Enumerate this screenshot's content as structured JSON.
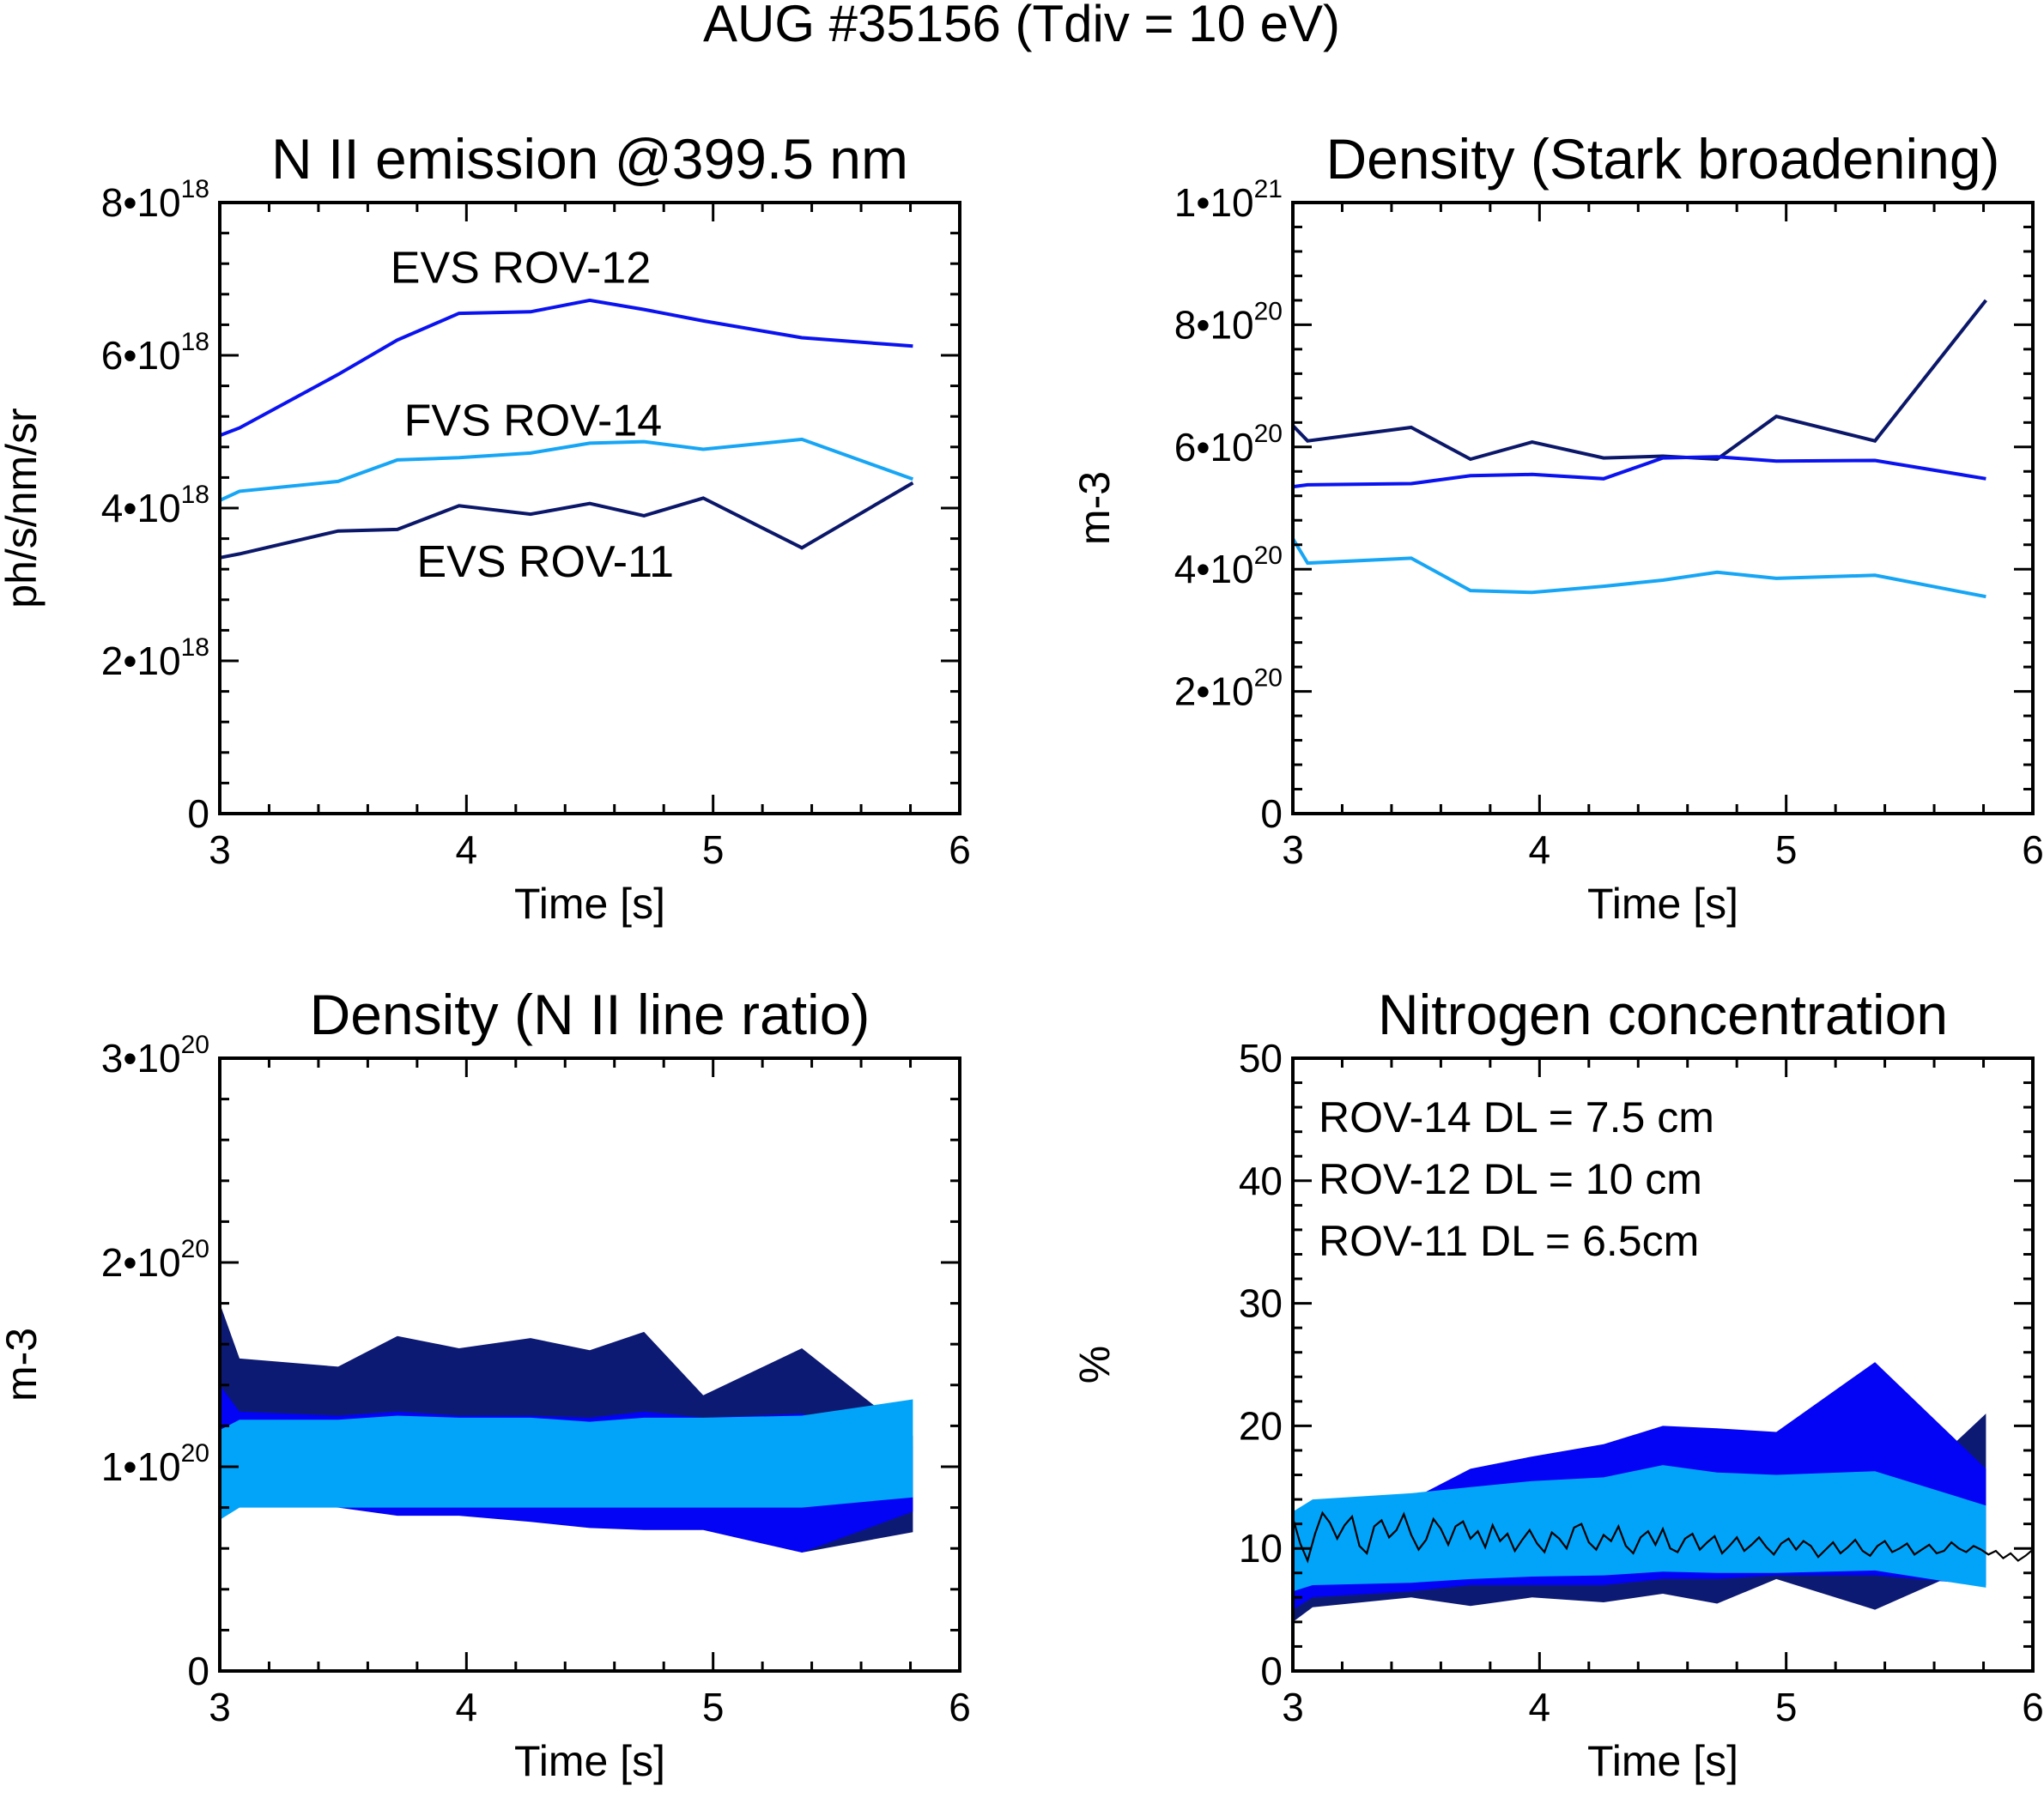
{
  "figure_title": "AUG #35156 (Tdiv = 10 eV)",
  "colors": {
    "dark_navy": "#0b1769",
    "blue": "#0a12f0",
    "light_blue": "#16a6f5",
    "fill_dark": "#0d1a73",
    "fill_blue": "#0303f5",
    "fill_light": "#02a4fa",
    "black": "#000000"
  },
  "chart_data": [
    {
      "id": "n2_emission",
      "type": "line",
      "title": "N II emission @399.5 nm",
      "xlabel": "Time [s]",
      "ylabel": "ph/s/nm/sr",
      "xlim": [
        3,
        6
      ],
      "ylim": [
        0,
        8e+18
      ],
      "xticks": [
        {
          "v": 3,
          "label": "3"
        },
        {
          "v": 4,
          "label": "4"
        },
        {
          "v": 5,
          "label": "5"
        },
        {
          "v": 6,
          "label": "6"
        }
      ],
      "yticks": [
        {
          "v": 0,
          "label": "0",
          "sup": ""
        },
        {
          "v": 2e+18,
          "label": "2•10",
          "sup": "18"
        },
        {
          "v": 4e+18,
          "label": "4•10",
          "sup": "18"
        },
        {
          "v": 6e+18,
          "label": "6•10",
          "sup": "18"
        },
        {
          "v": 8e+18,
          "label": "8•10",
          "sup": "18"
        }
      ],
      "series": [
        {
          "name": "EVS ROV-12",
          "color": "#0a12f0",
          "x": [
            3.0,
            3.08,
            3.48,
            3.72,
            3.97,
            4.26,
            4.5,
            4.72,
            4.96,
            5.36,
            5.81
          ],
          "y": [
            4.95e+18,
            5.05e+18,
            5.75e+18,
            6.2e+18,
            6.55e+18,
            6.57e+18,
            6.72e+18,
            6.6e+18,
            6.45e+18,
            6.23e+18,
            6.12e+18
          ],
          "label_x": 4.22,
          "label_y": 6.95e+18
        },
        {
          "name": "FVS ROV-14",
          "color": "#16a6f5",
          "x": [
            3.0,
            3.08,
            3.48,
            3.72,
            3.97,
            4.26,
            4.5,
            4.72,
            4.96,
            5.36,
            5.81
          ],
          "y": [
            4.1e+18,
            4.22e+18,
            4.35e+18,
            4.63e+18,
            4.66e+18,
            4.72e+18,
            4.85e+18,
            4.87e+18,
            4.77e+18,
            4.9e+18,
            4.38e+18
          ],
          "label_x": 4.27,
          "label_y": 4.95e+18
        },
        {
          "name": "EVS ROV-11",
          "color": "#0b1769",
          "x": [
            3.0,
            3.08,
            3.48,
            3.72,
            3.97,
            4.26,
            4.5,
            4.72,
            4.96,
            5.36,
            5.81
          ],
          "y": [
            3.35e+18,
            3.4e+18,
            3.7e+18,
            3.72e+18,
            4.03e+18,
            3.92e+18,
            4.06e+18,
            3.9e+18,
            4.13e+18,
            3.48e+18,
            4.33e+18
          ],
          "label_x": 4.32,
          "label_y": 3.1e+18
        }
      ]
    },
    {
      "id": "density_stark",
      "type": "line",
      "title": "Density (Stark broadening)",
      "xlabel": "Time [s]",
      "ylabel": "m-3",
      "xlim": [
        3,
        6
      ],
      "ylim": [
        0,
        1e+21
      ],
      "xticks": [
        {
          "v": 3,
          "label": "3"
        },
        {
          "v": 4,
          "label": "4"
        },
        {
          "v": 5,
          "label": "5"
        },
        {
          "v": 6,
          "label": "6"
        }
      ],
      "yticks": [
        {
          "v": 0,
          "label": "0",
          "sup": ""
        },
        {
          "v": 2e+20,
          "label": "2•10",
          "sup": "20"
        },
        {
          "v": 4e+20,
          "label": "4•10",
          "sup": "20"
        },
        {
          "v": 6e+20,
          "label": "6•10",
          "sup": "20"
        },
        {
          "v": 8e+20,
          "label": "8•10",
          "sup": "20"
        },
        {
          "v": 1e+21,
          "label": "1•10",
          "sup": "21"
        }
      ],
      "series": [
        {
          "name": "",
          "color": "#0b1769",
          "x": [
            3.0,
            3.06,
            3.48,
            3.72,
            3.97,
            4.26,
            4.5,
            4.72,
            4.96,
            5.36,
            5.81
          ],
          "y": [
            6.35e+20,
            6.1e+20,
            6.32e+20,
            5.8e+20,
            6.08e+20,
            5.82e+20,
            5.85e+20,
            5.8e+20,
            6.5e+20,
            6.1e+20,
            8.4e+20
          ]
        },
        {
          "name": "",
          "color": "#0a12f0",
          "x": [
            3.0,
            3.06,
            3.48,
            3.72,
            3.97,
            4.26,
            4.5,
            4.72,
            4.96,
            5.36,
            5.81
          ],
          "y": [
            5.35e+20,
            5.38e+20,
            5.4e+20,
            5.53e+20,
            5.55e+20,
            5.48e+20,
            5.82e+20,
            5.84e+20,
            5.77e+20,
            5.78e+20,
            5.48e+20
          ]
        },
        {
          "name": "",
          "color": "#16a6f5",
          "x": [
            3.0,
            3.06,
            3.48,
            3.72,
            3.97,
            4.26,
            4.5,
            4.72,
            4.96,
            5.36,
            5.81
          ],
          "y": [
            4.5e+20,
            4.1e+20,
            4.18e+20,
            3.65e+20,
            3.62e+20,
            3.72e+20,
            3.82e+20,
            3.95e+20,
            3.85e+20,
            3.9e+20,
            3.55e+20
          ]
        }
      ]
    },
    {
      "id": "density_line_ratio",
      "type": "area",
      "title": "Density (N II line ratio)",
      "xlabel": "Time [s]",
      "ylabel": "m-3",
      "xlim": [
        3,
        6
      ],
      "ylim": [
        0,
        3e+20
      ],
      "xticks": [
        {
          "v": 3,
          "label": "3"
        },
        {
          "v": 4,
          "label": "4"
        },
        {
          "v": 5,
          "label": "5"
        },
        {
          "v": 6,
          "label": "6"
        }
      ],
      "yticks": [
        {
          "v": 0,
          "label": "0",
          "sup": ""
        },
        {
          "v": 1e+20,
          "label": "1•10",
          "sup": "20"
        },
        {
          "v": 2e+20,
          "label": "2•10",
          "sup": "20"
        },
        {
          "v": 3e+20,
          "label": "3•10",
          "sup": "20"
        }
      ],
      "series": [
        {
          "name": "",
          "color": "#0d1a73",
          "x": [
            3.0,
            3.08,
            3.48,
            3.72,
            3.97,
            4.26,
            4.5,
            4.72,
            4.96,
            5.36,
            5.81
          ],
          "upper": [
            1.8e+20,
            1.53e+20,
            1.49e+20,
            1.64e+20,
            1.58e+20,
            1.63e+20,
            1.57e+20,
            1.66e+20,
            1.35e+20,
            1.58e+20,
            1.15e+20
          ],
          "lower": [
            1.1e+20,
            9.5e+19,
            9.5e+19,
            9e+19,
            9.2e+19,
            9e+19,
            8.6e+19,
            8.5e+19,
            8.5e+19,
            5.8e+19,
            6.8e+19
          ]
        },
        {
          "name": "",
          "color": "#0303f5",
          "x": [
            3.0,
            3.08,
            3.48,
            3.72,
            3.97,
            4.26,
            4.5,
            4.72,
            4.96,
            5.36,
            5.81
          ],
          "upper": [
            1.4e+20,
            1.27e+20,
            1.25e+20,
            1.27e+20,
            1.25e+20,
            1.25e+20,
            1.24e+20,
            1.27e+20,
            1.24e+20,
            1.26e+20,
            1.1e+20
          ],
          "lower": [
            8.5e+19,
            8.2e+19,
            8e+19,
            7.6e+19,
            7.6e+19,
            7.3e+19,
            7e+19,
            6.9e+19,
            6.9e+19,
            5.8e+19,
            7.8e+19
          ]
        },
        {
          "name": "",
          "color": "#02a4fa",
          "x": [
            3.0,
            3.08,
            3.48,
            3.72,
            3.97,
            4.26,
            4.5,
            4.72,
            4.96,
            5.36,
            5.81
          ],
          "upper": [
            1.18e+20,
            1.23e+20,
            1.23e+20,
            1.25e+20,
            1.24e+20,
            1.24e+20,
            1.22e+20,
            1.24e+20,
            1.24e+20,
            1.25e+20,
            1.33e+20
          ],
          "lower": [
            7.4e+19,
            8e+19,
            8e+19,
            8e+19,
            8e+19,
            8e+19,
            8e+19,
            8e+19,
            8e+19,
            8e+19,
            8.5e+19
          ]
        }
      ]
    },
    {
      "id": "nitrogen_concentration",
      "type": "area",
      "title": "Nitrogen concentration",
      "xlabel": "Time [s]",
      "ylabel": "%",
      "xlim": [
        3,
        6
      ],
      "ylim": [
        0,
        50
      ],
      "xticks": [
        {
          "v": 3,
          "label": "3"
        },
        {
          "v": 4,
          "label": "4"
        },
        {
          "v": 5,
          "label": "5"
        },
        {
          "v": 6,
          "label": "6"
        }
      ],
      "yticks": [
        {
          "v": 0,
          "label": "0",
          "sup": ""
        },
        {
          "v": 10,
          "label": "10",
          "sup": ""
        },
        {
          "v": 20,
          "label": "20",
          "sup": ""
        },
        {
          "v": 30,
          "label": "30",
          "sup": ""
        },
        {
          "v": 40,
          "label": "40",
          "sup": ""
        },
        {
          "v": 50,
          "label": "50",
          "sup": ""
        }
      ],
      "annotations": [
        "ROV-14 DL = 7.5 cm",
        "ROV-12 DL = 10 cm",
        "ROV-11 DL = 6.5cm"
      ],
      "series": [
        {
          "name": "ROV-11",
          "color": "#0d1a73",
          "x": [
            3.0,
            3.08,
            3.48,
            3.72,
            3.97,
            4.26,
            4.5,
            4.72,
            4.96,
            5.36,
            5.81
          ],
          "upper": [
            10.0,
            10.5,
            11.0,
            11.0,
            11.5,
            11.5,
            12.0,
            12.0,
            12.0,
            12.5,
            21.0
          ],
          "lower": [
            4.0,
            5.2,
            6.0,
            5.3,
            6.0,
            5.6,
            6.3,
            5.5,
            7.5,
            5.0,
            9.0
          ]
        },
        {
          "name": "ROV-12",
          "color": "#0303f5",
          "x": [
            3.0,
            3.08,
            3.48,
            3.72,
            3.97,
            4.26,
            4.5,
            4.72,
            4.96,
            5.36,
            5.81
          ],
          "upper": [
            12.0,
            13.0,
            14.0,
            16.5,
            17.5,
            18.5,
            20.0,
            19.8,
            19.5,
            25.2,
            16.5
          ],
          "lower": [
            5.0,
            6.0,
            6.5,
            7.0,
            7.0,
            7.0,
            7.5,
            7.5,
            7.8,
            7.8,
            7.0
          ]
        },
        {
          "name": "ROV-14",
          "color": "#02a4fa",
          "x": [
            3.0,
            3.08,
            3.48,
            3.72,
            3.97,
            4.26,
            4.5,
            4.72,
            4.96,
            5.36,
            5.81
          ],
          "upper": [
            13.0,
            14.0,
            14.5,
            15.0,
            15.5,
            15.8,
            16.8,
            16.2,
            16.0,
            16.3,
            13.5
          ],
          "lower": [
            6.5,
            7.0,
            7.2,
            7.5,
            7.7,
            7.8,
            8.1,
            8.0,
            8.0,
            8.2,
            6.8
          ]
        }
      ],
      "trace": {
        "color": "#000000",
        "x": [
          3.0,
          3.03,
          3.06,
          3.09,
          3.12,
          3.15,
          3.18,
          3.21,
          3.24,
          3.27,
          3.3,
          3.33,
          3.36,
          3.39,
          3.42,
          3.45,
          3.48,
          3.51,
          3.54,
          3.57,
          3.6,
          3.63,
          3.66,
          3.69,
          3.72,
          3.75,
          3.78,
          3.81,
          3.84,
          3.87,
          3.9,
          3.93,
          3.96,
          3.99,
          4.02,
          4.05,
          4.08,
          4.11,
          4.14,
          4.17,
          4.2,
          4.23,
          4.26,
          4.29,
          4.32,
          4.35,
          4.38,
          4.41,
          4.44,
          4.47,
          4.5,
          4.53,
          4.56,
          4.59,
          4.62,
          4.65,
          4.68,
          4.71,
          4.74,
          4.77,
          4.8,
          4.83,
          4.86,
          4.89,
          4.92,
          4.95,
          4.98,
          5.01,
          5.04,
          5.07,
          5.1,
          5.13,
          5.16,
          5.19,
          5.22,
          5.25,
          5.28,
          5.31,
          5.34,
          5.37,
          5.4,
          5.43,
          5.46,
          5.49,
          5.52,
          5.55,
          5.58,
          5.61,
          5.64,
          5.67,
          5.7,
          5.73,
          5.76,
          5.79,
          5.82,
          5.85,
          5.88,
          5.91,
          5.94,
          5.97,
          6.0
        ],
        "y": [
          12.5,
          10.4,
          9.0,
          11.2,
          12.9,
          12.1,
          10.8,
          11.9,
          12.6,
          10.2,
          9.6,
          11.8,
          12.3,
          10.9,
          11.5,
          12.8,
          11.1,
          9.9,
          10.7,
          12.4,
          11.6,
          10.3,
          11.8,
          12.2,
          10.8,
          11.4,
          10.1,
          11.9,
          10.6,
          11.2,
          9.8,
          10.7,
          11.5,
          10.4,
          9.7,
          11.3,
          10.8,
          10.0,
          11.7,
          12.0,
          10.5,
          9.9,
          11.1,
          10.6,
          11.8,
          10.2,
          9.6,
          10.9,
          11.4,
          10.3,
          11.6,
          10.0,
          9.7,
          10.8,
          11.2,
          9.9,
          10.5,
          11.0,
          9.6,
          10.2,
          10.9,
          9.8,
          10.3,
          10.9,
          10.1,
          9.5,
          10.4,
          10.8,
          9.9,
          10.6,
          10.2,
          9.3,
          9.9,
          10.5,
          9.6,
          10.1,
          10.7,
          9.8,
          9.4,
          10.2,
          10.6,
          9.7,
          10.0,
          10.4,
          9.5,
          9.9,
          10.3,
          9.6,
          9.8,
          10.5,
          10.0,
          9.7,
          10.2,
          9.9,
          9.5,
          9.8,
          9.2,
          9.6,
          9.0,
          9.4,
          9.9
        ]
      }
    }
  ]
}
